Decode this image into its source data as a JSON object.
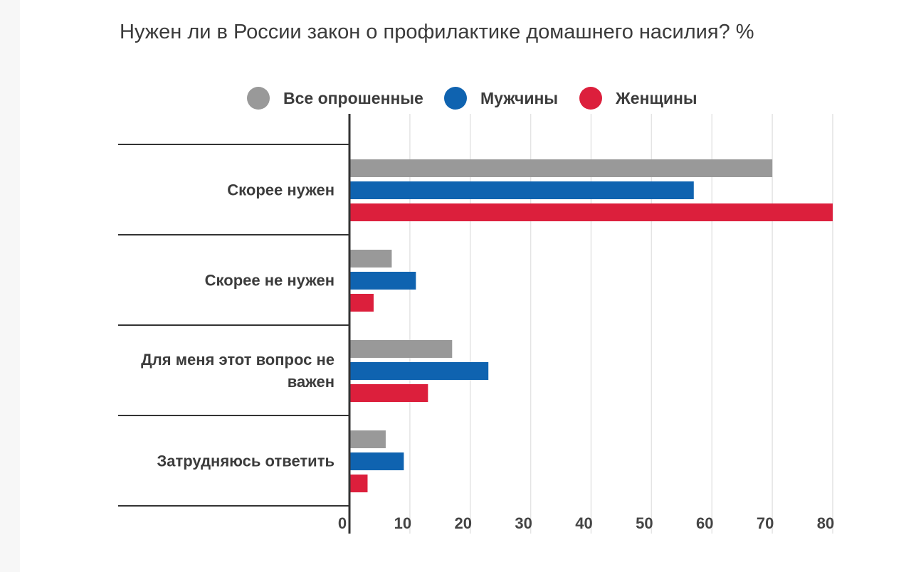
{
  "chart_data": {
    "type": "bar",
    "orientation": "horizontal",
    "title": "Нужен ли в России закон о профилактике домашнего насилия? %",
    "categories": [
      [
        "Скорее нужен"
      ],
      [
        "Скорее не нужен"
      ],
      [
        "Для меня этот вопрос не",
        "важен"
      ],
      [
        "Затрудняюсь ответить"
      ]
    ],
    "series": [
      {
        "name": "Все опрошенные",
        "color": "#999999",
        "values": [
          70,
          7,
          17,
          6
        ]
      },
      {
        "name": "Мужчины",
        "color": "#0f63b0",
        "values": [
          57,
          11,
          23,
          9
        ]
      },
      {
        "name": "Женщины",
        "color": "#dc1f3c",
        "values": [
          80,
          4,
          13,
          3
        ]
      }
    ],
    "xlim": [
      0,
      80
    ],
    "xticks": [
      0,
      10,
      20,
      30,
      40,
      50,
      60,
      70,
      80
    ],
    "grid": true,
    "legend": "top"
  }
}
